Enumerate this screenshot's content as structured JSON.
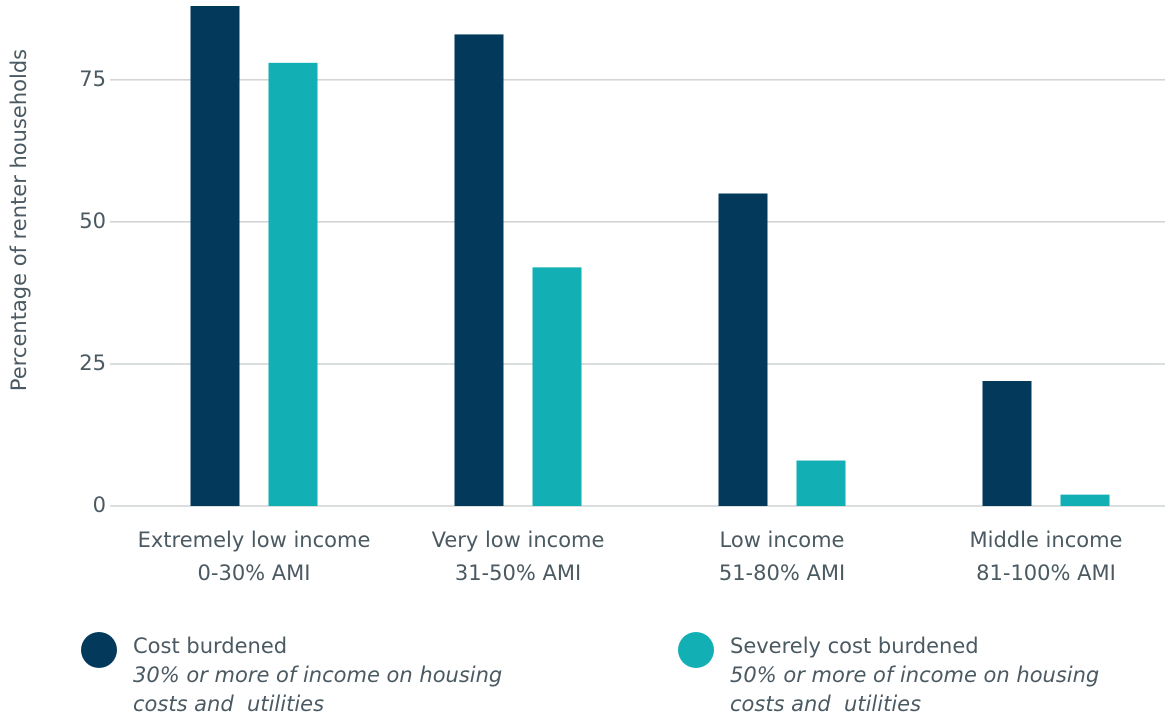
{
  "chart_data": {
    "type": "bar",
    "y_label": "Percentage of renter households",
    "categories": [
      [
        "Extremely low income",
        "0-30% AMI"
      ],
      [
        "Very low income",
        "31-50% AMI"
      ],
      [
        "Low income",
        "51-80% AMI"
      ],
      [
        "Middle income",
        "81-100% AMI"
      ]
    ],
    "series": [
      {
        "name": "Cost burdened",
        "description": "30% or more of income on housing costs and  utilities",
        "color": "#03395a",
        "values": [
          88,
          83,
          55,
          22
        ]
      },
      {
        "name": "Severely cost burdened",
        "description": "50% or more of income on housing costs and  utilities",
        "color": "#12b0b4",
        "values": [
          78,
          42,
          8,
          2
        ]
      }
    ],
    "ylim": [
      0,
      88
    ],
    "yticks": [
      0,
      25,
      50,
      75
    ],
    "grid": true
  }
}
